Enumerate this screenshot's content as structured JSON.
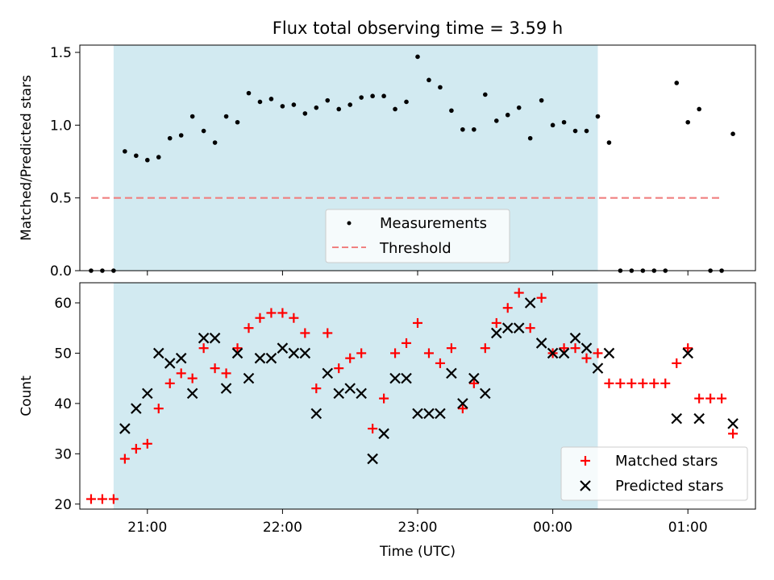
{
  "colors": {
    "shade": "#add8e6",
    "measurement": "#000000",
    "threshold": "#f08080",
    "matched": "#ff0000",
    "predicted": "#000000"
  },
  "chart_data": [
    {
      "type": "scatter",
      "title": "Flux total observing time = 3.59 h",
      "xlabel": "",
      "ylabel": "Matched/Predicted stars",
      "x_tick_labels": [],
      "xlim": [
        "20:30",
        "01:30"
      ],
      "ylim": [
        0,
        1.55
      ],
      "y_ticks": [
        0.0,
        0.5,
        1.0,
        1.5
      ],
      "y_tick_labels": [
        "0.0",
        "0.5",
        "1.0",
        "1.5"
      ],
      "shaded_span": [
        "20:45",
        "00:20"
      ],
      "legend_position": "lower center",
      "threshold": {
        "name": "Threshold",
        "value": 0.5,
        "x_range": [
          "20:35",
          "01:15"
        ],
        "style": "dashed"
      },
      "series": [
        {
          "name": "Measurements",
          "marker": "dot",
          "points": [
            [
              "20:35",
              0
            ],
            [
              "20:40",
              0
            ],
            [
              "20:45",
              0
            ],
            [
              "20:50",
              0.82
            ],
            [
              "20:55",
              0.79
            ],
            [
              "21:00",
              0.76
            ],
            [
              "21:05",
              0.78
            ],
            [
              "21:10",
              0.91
            ],
            [
              "21:15",
              0.93
            ],
            [
              "21:20",
              1.06
            ],
            [
              "21:25",
              0.96
            ],
            [
              "21:30",
              0.88
            ],
            [
              "21:35",
              1.06
            ],
            [
              "21:40",
              1.02
            ],
            [
              "21:45",
              1.22
            ],
            [
              "21:50",
              1.16
            ],
            [
              "21:55",
              1.18
            ],
            [
              "22:00",
              1.13
            ],
            [
              "22:05",
              1.14
            ],
            [
              "22:10",
              1.08
            ],
            [
              "22:15",
              1.12
            ],
            [
              "22:20",
              1.17
            ],
            [
              "22:25",
              1.11
            ],
            [
              "22:30",
              1.14
            ],
            [
              "22:35",
              1.19
            ],
            [
              "22:40",
              1.2
            ],
            [
              "22:45",
              1.2
            ],
            [
              "22:50",
              1.11
            ],
            [
              "22:55",
              1.16
            ],
            [
              "23:00",
              1.47
            ],
            [
              "23:05",
              1.31
            ],
            [
              "23:10",
              1.26
            ],
            [
              "23:15",
              1.1
            ],
            [
              "23:20",
              0.97
            ],
            [
              "23:25",
              0.97
            ],
            [
              "23:30",
              1.21
            ],
            [
              "23:35",
              1.03
            ],
            [
              "23:40",
              1.07
            ],
            [
              "23:45",
              1.12
            ],
            [
              "23:50",
              0.91
            ],
            [
              "23:55",
              1.17
            ],
            [
              "00:00",
              1.0
            ],
            [
              "00:05",
              1.02
            ],
            [
              "00:10",
              0.96
            ],
            [
              "00:15",
              0.96
            ],
            [
              "00:20",
              1.06
            ],
            [
              "00:25",
              0.88
            ],
            [
              "00:30",
              0
            ],
            [
              "00:35",
              0
            ],
            [
              "00:40",
              0
            ],
            [
              "00:45",
              0
            ],
            [
              "00:50",
              0
            ],
            [
              "00:55",
              1.29
            ],
            [
              "01:00",
              1.02
            ],
            [
              "01:05",
              1.11
            ],
            [
              "01:10",
              0
            ],
            [
              "01:15",
              0
            ],
            [
              "01:20",
              0.94
            ]
          ]
        }
      ]
    },
    {
      "type": "scatter",
      "title": "",
      "xlabel": "Time (UTC)",
      "ylabel": "Count",
      "x_ticks": [
        "21:00",
        "22:00",
        "23:00",
        "00:00",
        "01:00"
      ],
      "x_tick_labels": [
        "21:00",
        "22:00",
        "23:00",
        "00:00",
        "01:00"
      ],
      "xlim": [
        "20:30",
        "01:30"
      ],
      "ylim": [
        19,
        64
      ],
      "y_ticks": [
        20,
        30,
        40,
        50,
        60
      ],
      "y_tick_labels": [
        "20",
        "30",
        "40",
        "50",
        "60"
      ],
      "shaded_span": [
        "20:45",
        "00:20"
      ],
      "legend_position": "lower right",
      "series": [
        {
          "name": "Matched stars",
          "marker": "plus",
          "points": [
            [
              "20:35",
              21
            ],
            [
              "20:40",
              21
            ],
            [
              "20:45",
              21
            ],
            [
              "20:50",
              29
            ],
            [
              "20:55",
              31
            ],
            [
              "21:00",
              32
            ],
            [
              "21:05",
              39
            ],
            [
              "21:10",
              44
            ],
            [
              "21:15",
              46
            ],
            [
              "21:20",
              45
            ],
            [
              "21:25",
              51
            ],
            [
              "21:30",
              47
            ],
            [
              "21:35",
              46
            ],
            [
              "21:40",
              51
            ],
            [
              "21:45",
              55
            ],
            [
              "21:50",
              57
            ],
            [
              "21:55",
              58
            ],
            [
              "22:00",
              58
            ],
            [
              "22:05",
              57
            ],
            [
              "22:10",
              54
            ],
            [
              "22:15",
              43
            ],
            [
              "22:20",
              54
            ],
            [
              "22:25",
              47
            ],
            [
              "22:30",
              49
            ],
            [
              "22:35",
              50
            ],
            [
              "22:40",
              35
            ],
            [
              "22:45",
              41
            ],
            [
              "22:50",
              50
            ],
            [
              "22:55",
              52
            ],
            [
              "23:00",
              56
            ],
            [
              "23:05",
              50
            ],
            [
              "23:10",
              48
            ],
            [
              "23:15",
              51
            ],
            [
              "23:20",
              39
            ],
            [
              "23:25",
              44
            ],
            [
              "23:30",
              51
            ],
            [
              "23:35",
              56
            ],
            [
              "23:40",
              59
            ],
            [
              "23:45",
              62
            ],
            [
              "23:50",
              55
            ],
            [
              "23:55",
              61
            ],
            [
              "00:00",
              50
            ],
            [
              "00:05",
              51
            ],
            [
              "00:10",
              51
            ],
            [
              "00:15",
              49
            ],
            [
              "00:20",
              50
            ],
            [
              "00:25",
              44
            ],
            [
              "00:30",
              44
            ],
            [
              "00:35",
              44
            ],
            [
              "00:40",
              44
            ],
            [
              "00:45",
              44
            ],
            [
              "00:50",
              44
            ],
            [
              "00:55",
              48
            ],
            [
              "01:00",
              51
            ],
            [
              "01:05",
              41
            ],
            [
              "01:10",
              41
            ],
            [
              "01:15",
              41
            ],
            [
              "01:20",
              34
            ]
          ]
        },
        {
          "name": "Predicted stars",
          "marker": "x",
          "points": [
            [
              "20:50",
              35
            ],
            [
              "20:55",
              39
            ],
            [
              "21:00",
              42
            ],
            [
              "21:05",
              50
            ],
            [
              "21:10",
              48
            ],
            [
              "21:15",
              49
            ],
            [
              "21:20",
              42
            ],
            [
              "21:25",
              53
            ],
            [
              "21:30",
              53
            ],
            [
              "21:35",
              43
            ],
            [
              "21:40",
              50
            ],
            [
              "21:45",
              45
            ],
            [
              "21:50",
              49
            ],
            [
              "21:55",
              49
            ],
            [
              "22:00",
              51
            ],
            [
              "22:05",
              50
            ],
            [
              "22:10",
              50
            ],
            [
              "22:15",
              38
            ],
            [
              "22:20",
              46
            ],
            [
              "22:25",
              42
            ],
            [
              "22:30",
              43
            ],
            [
              "22:35",
              42
            ],
            [
              "22:40",
              29
            ],
            [
              "22:45",
              34
            ],
            [
              "22:50",
              45
            ],
            [
              "22:55",
              45
            ],
            [
              "23:00",
              38
            ],
            [
              "23:05",
              38
            ],
            [
              "23:10",
              38
            ],
            [
              "23:15",
              46
            ],
            [
              "23:20",
              40
            ],
            [
              "23:25",
              45
            ],
            [
              "23:30",
              42
            ],
            [
              "23:35",
              54
            ],
            [
              "23:40",
              55
            ],
            [
              "23:45",
              55
            ],
            [
              "23:50",
              60
            ],
            [
              "23:55",
              52
            ],
            [
              "00:00",
              50
            ],
            [
              "00:05",
              50
            ],
            [
              "00:10",
              53
            ],
            [
              "00:15",
              51
            ],
            [
              "00:20",
              47
            ],
            [
              "00:25",
              50
            ],
            [
              "00:55",
              37
            ],
            [
              "01:00",
              50
            ],
            [
              "01:05",
              37
            ],
            [
              "01:20",
              36
            ]
          ]
        }
      ]
    }
  ]
}
